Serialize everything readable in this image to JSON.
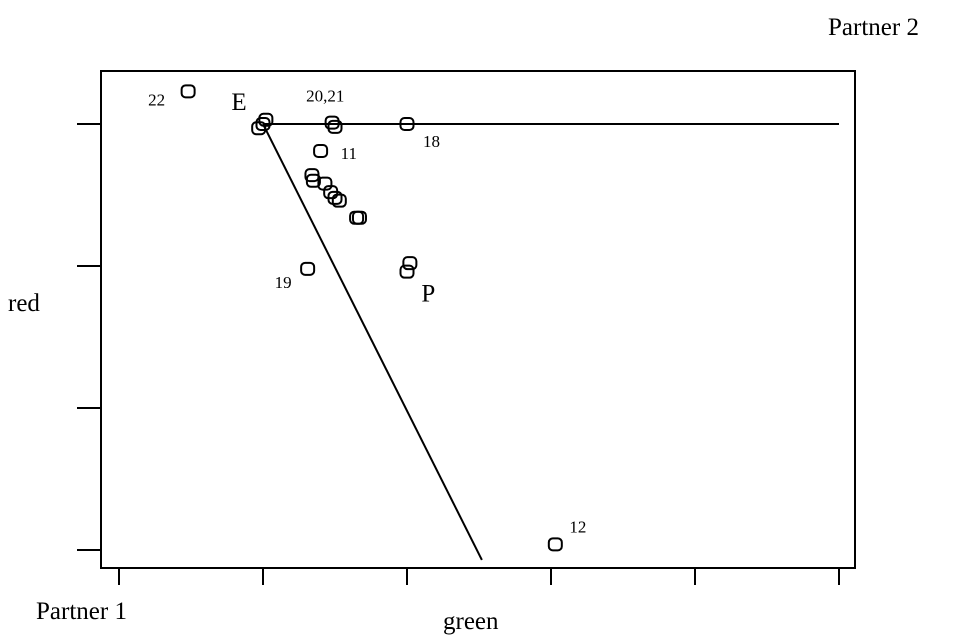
{
  "labels": {
    "top_right": "Partner 2",
    "bottom_left": "Partner 1",
    "xlabel": "green",
    "ylabel": "red"
  },
  "chart_data": {
    "type": "scatter",
    "title": "",
    "xlabel": "green",
    "ylabel": "red",
    "xlim": [
      0,
      5
    ],
    "ylim": [
      0,
      3
    ],
    "xticks": [
      0,
      1,
      2,
      3,
      4,
      5
    ],
    "yticks": [
      0,
      1,
      2,
      3
    ],
    "grid": false,
    "points": [
      {
        "x": 0.48,
        "y": 3.23,
        "label": "22"
      },
      {
        "x": 0.97,
        "y": 2.97,
        "label": ""
      },
      {
        "x": 1.0,
        "y": 3.0,
        "label": ""
      },
      {
        "x": 1.02,
        "y": 3.03,
        "label": ""
      },
      {
        "x": 1.48,
        "y": 3.01,
        "label": "20,21"
      },
      {
        "x": 1.5,
        "y": 2.98,
        "label": ""
      },
      {
        "x": 2.0,
        "y": 3.0,
        "label": "18"
      },
      {
        "x": 1.4,
        "y": 2.81,
        "label": "11"
      },
      {
        "x": 1.34,
        "y": 2.64,
        "label": ""
      },
      {
        "x": 1.35,
        "y": 2.6,
        "label": ""
      },
      {
        "x": 1.43,
        "y": 2.58,
        "label": ""
      },
      {
        "x": 1.47,
        "y": 2.52,
        "label": ""
      },
      {
        "x": 1.5,
        "y": 2.48,
        "label": ""
      },
      {
        "x": 1.53,
        "y": 2.46,
        "label": ""
      },
      {
        "x": 1.65,
        "y": 2.34,
        "label": ""
      },
      {
        "x": 1.67,
        "y": 2.34,
        "label": ""
      },
      {
        "x": 1.31,
        "y": 1.98,
        "label": "19"
      },
      {
        "x": 2.02,
        "y": 2.02,
        "label": ""
      },
      {
        "x": 2.0,
        "y": 1.96,
        "label": ""
      },
      {
        "x": 3.03,
        "y": 0.04,
        "label": "12"
      }
    ],
    "annotations": [
      {
        "text": "E",
        "x": 0.78,
        "y": 3.1
      },
      {
        "text": "P",
        "x": 2.1,
        "y": 1.75
      }
    ],
    "lines": [
      {
        "from": [
          1.0,
          3.0
        ],
        "to": [
          5.0,
          3.0
        ]
      },
      {
        "from": [
          1.0,
          3.0
        ],
        "to": [
          2.52,
          -0.07
        ]
      }
    ]
  }
}
